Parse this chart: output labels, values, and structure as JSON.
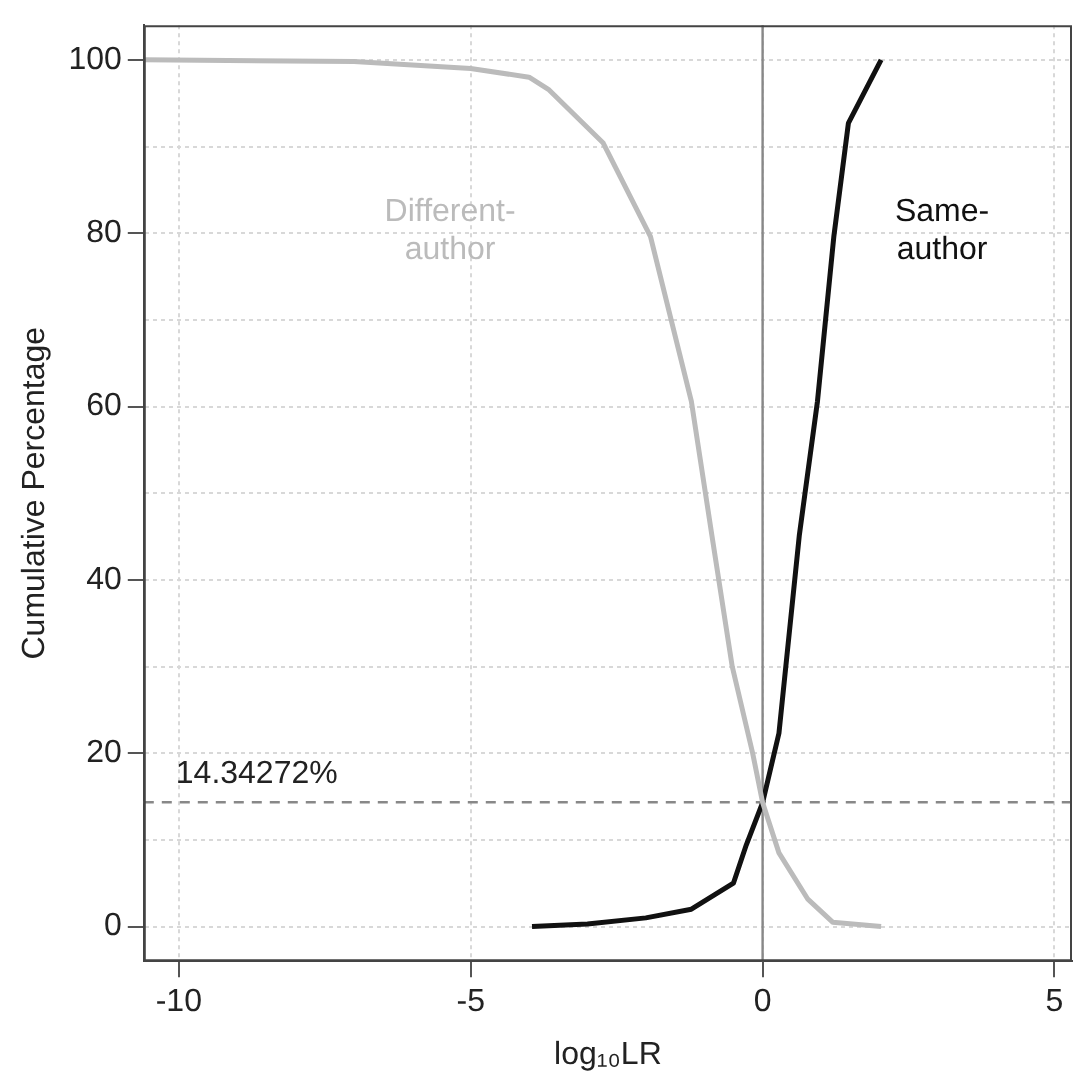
{
  "chart_data": {
    "type": "line",
    "xlabel": "log₁₀LR",
    "ylabel": "Cumulative Percentage",
    "xlim": [
      -10.6,
      5.3
    ],
    "ylim": [
      -4,
      104
    ],
    "xticks": [
      -10,
      -5,
      0,
      5
    ],
    "yticks": [
      0,
      {
        "value": 10,
        "label": null
      },
      20,
      {
        "value": 30,
        "label": null
      },
      40,
      {
        "value": 50,
        "label": null
      },
      60,
      {
        "value": 70,
        "label": null
      },
      80,
      {
        "value": 90,
        "label": null
      },
      100
    ],
    "grid": true,
    "legend": false,
    "marker": "none",
    "line_style": "solid",
    "series": [
      {
        "name": "Different-\nauthor",
        "color": "#bbbbbb",
        "x": [
          -10.6,
          -7,
          -5,
          -4,
          -3.67,
          -2.73,
          -1.92,
          -1.22,
          -0.87,
          -0.52,
          -0.17,
          0,
          0.28,
          0.77,
          1.2,
          2.03
        ],
        "values": [
          100,
          99.8,
          99,
          98,
          96.6,
          90.4,
          79.6,
          60.6,
          45.2,
          30,
          20,
          14.3,
          8.5,
          3.2,
          0.5,
          0
        ]
      },
      {
        "name": "Same-\nauthor",
        "color": "#111111",
        "x": [
          -3.95,
          -3,
          -2,
          -1.22,
          -0.5,
          -0.28,
          0,
          0.28,
          0.63,
          0.94,
          1.22,
          1.47,
          2.03
        ],
        "values": [
          0,
          0.3,
          1,
          2,
          5,
          9.4,
          14.3,
          22.3,
          45.2,
          60.6,
          79.6,
          92.7,
          100
        ]
      }
    ],
    "ref_lines": [
      {
        "axis": "x",
        "value": 0,
        "label": null,
        "color": "#888888",
        "line_style": "solid"
      },
      {
        "axis": "y",
        "value": 14.34272,
        "label": "14.34272%",
        "color": "#888888",
        "line_style": "dashed"
      }
    ]
  }
}
